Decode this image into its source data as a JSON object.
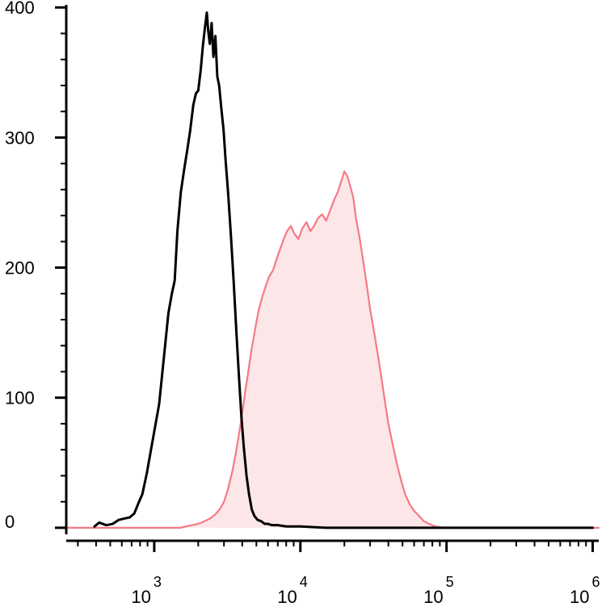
{
  "chart_data": {
    "type": "area",
    "title": "",
    "xlabel": "",
    "ylabel": "",
    "x_scale": "log",
    "xlim": [
      250,
      1100000
    ],
    "ylim": [
      -10,
      402
    ],
    "y_ticks": [
      {
        "value": 0,
        "label": "0"
      },
      {
        "value": 100,
        "label": "100"
      },
      {
        "value": 200,
        "label": "200"
      },
      {
        "value": 300,
        "label": "300"
      },
      {
        "value": 400,
        "label": "400"
      }
    ],
    "x_ticks": [
      {
        "value": 1000,
        "base": "10",
        "exp": "3"
      },
      {
        "value": 10000,
        "base": "10",
        "exp": "4"
      },
      {
        "value": 100000,
        "base": "10",
        "exp": "5"
      },
      {
        "value": 1000000,
        "base": "10",
        "exp": "6"
      }
    ],
    "grid": false,
    "legend": "none",
    "series": [
      {
        "color": "#000000",
        "fill": "none",
        "points": [
          [
            390,
            1
          ],
          [
            420,
            4
          ],
          [
            470,
            2
          ],
          [
            520,
            3
          ],
          [
            570,
            6
          ],
          [
            620,
            7
          ],
          [
            680,
            8
          ],
          [
            730,
            11
          ],
          [
            780,
            19
          ],
          [
            830,
            26
          ],
          [
            890,
            42
          ],
          [
            950,
            60
          ],
          [
            1000,
            74
          ],
          [
            1080,
            95
          ],
          [
            1150,
            125
          ],
          [
            1250,
            165
          ],
          [
            1320,
            180
          ],
          [
            1380,
            190
          ],
          [
            1440,
            228
          ],
          [
            1520,
            258
          ],
          [
            1600,
            275
          ],
          [
            1680,
            290
          ],
          [
            1760,
            305
          ],
          [
            1850,
            325
          ],
          [
            1930,
            334
          ],
          [
            2000,
            336
          ],
          [
            2080,
            352
          ],
          [
            2150,
            370
          ],
          [
            2220,
            384
          ],
          [
            2290,
            396
          ],
          [
            2340,
            382
          ],
          [
            2400,
            372
          ],
          [
            2470,
            388
          ],
          [
            2540,
            362
          ],
          [
            2620,
            378
          ],
          [
            2700,
            347
          ],
          [
            2780,
            340
          ],
          [
            2880,
            322
          ],
          [
            2980,
            306
          ],
          [
            3080,
            282
          ],
          [
            3200,
            258
          ],
          [
            3350,
            224
          ],
          [
            3500,
            188
          ],
          [
            3650,
            150
          ],
          [
            3800,
            116
          ],
          [
            3950,
            85
          ],
          [
            4100,
            62
          ],
          [
            4280,
            40
          ],
          [
            4450,
            26
          ],
          [
            4650,
            14
          ],
          [
            4850,
            9
          ],
          [
            5100,
            6
          ],
          [
            5400,
            5
          ],
          [
            5700,
            3
          ],
          [
            6000,
            3
          ],
          [
            6400,
            2
          ],
          [
            7000,
            2
          ],
          [
            8000,
            1
          ],
          [
            10000,
            1
          ],
          [
            15000,
            0
          ],
          [
            40000,
            0
          ],
          [
            100000,
            0
          ],
          [
            300000,
            0
          ],
          [
            1000000,
            0
          ]
        ]
      },
      {
        "color": "#f47a86",
        "fill": "#fde6e8",
        "points": [
          [
            250,
            0
          ],
          [
            1500,
            0
          ],
          [
            1800,
            2
          ],
          [
            2000,
            3
          ],
          [
            2200,
            5
          ],
          [
            2400,
            7
          ],
          [
            2600,
            10
          ],
          [
            2800,
            14
          ],
          [
            3000,
            20
          ],
          [
            3200,
            30
          ],
          [
            3400,
            42
          ],
          [
            3600,
            56
          ],
          [
            3800,
            72
          ],
          [
            4000,
            88
          ],
          [
            4200,
            105
          ],
          [
            4400,
            120
          ],
          [
            4600,
            135
          ],
          [
            4800,
            147
          ],
          [
            5000,
            158
          ],
          [
            5200,
            168
          ],
          [
            5500,
            178
          ],
          [
            5800,
            186
          ],
          [
            6100,
            193
          ],
          [
            6500,
            198
          ],
          [
            6900,
            207
          ],
          [
            7300,
            215
          ],
          [
            7700,
            222
          ],
          [
            8100,
            228
          ],
          [
            8600,
            232
          ],
          [
            9100,
            226
          ],
          [
            9700,
            222
          ],
          [
            10300,
            230
          ],
          [
            11000,
            235
          ],
          [
            11700,
            228
          ],
          [
            12400,
            232
          ],
          [
            13200,
            238
          ],
          [
            14100,
            241
          ],
          [
            15000,
            236
          ],
          [
            16000,
            244
          ],
          [
            17000,
            252
          ],
          [
            18000,
            258
          ],
          [
            19000,
            266
          ],
          [
            20000,
            274
          ],
          [
            21000,
            270
          ],
          [
            22000,
            262
          ],
          [
            23000,
            254
          ],
          [
            24000,
            238
          ],
          [
            25500,
            222
          ],
          [
            27000,
            204
          ],
          [
            28500,
            186
          ],
          [
            30000,
            168
          ],
          [
            32000,
            150
          ],
          [
            34000,
            132
          ],
          [
            36000,
            114
          ],
          [
            38000,
            96
          ],
          [
            40000,
            80
          ],
          [
            43000,
            63
          ],
          [
            46000,
            48
          ],
          [
            49000,
            36
          ],
          [
            52000,
            26
          ],
          [
            56000,
            18
          ],
          [
            60000,
            13
          ],
          [
            65000,
            9
          ],
          [
            70000,
            5
          ],
          [
            76000,
            3
          ],
          [
            84000,
            1
          ],
          [
            95000,
            0
          ],
          [
            1100000,
            0
          ]
        ]
      }
    ]
  }
}
